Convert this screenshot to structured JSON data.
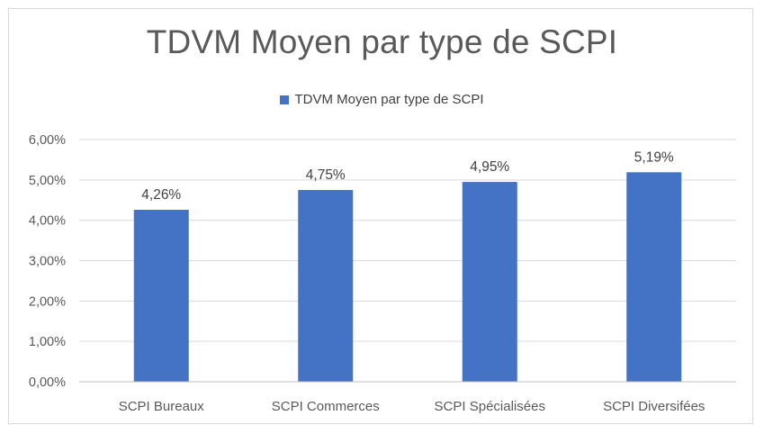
{
  "chart_data": {
    "type": "bar",
    "title": "TDVM Moyen par type de SCPI",
    "categories": [
      "SCPI Bureaux",
      "SCPI Commerces",
      "SCPI Spécialisées",
      "SCPI Diversifées"
    ],
    "series": [
      {
        "name": "TDVM Moyen par type de SCPI",
        "values": [
          4.26,
          4.75,
          4.95,
          5.19
        ],
        "labels": [
          "4,26%",
          "4,75%",
          "4,95%",
          "5,19%"
        ]
      }
    ],
    "yticks": [
      "0,00%",
      "1,00%",
      "2,00%",
      "3,00%",
      "4,00%",
      "5,00%",
      "6,00%"
    ],
    "ylim": [
      0,
      6
    ],
    "xlabel": "",
    "ylabel": "",
    "grid": true,
    "legend_position": "top",
    "colors": {
      "bar": "#4472c4",
      "grid": "#d9d9d9",
      "axis": "#bfbfbf",
      "text": "#595959",
      "title": "#595959"
    }
  }
}
